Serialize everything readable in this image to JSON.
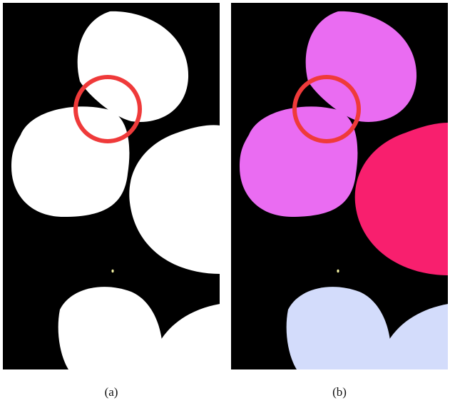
{
  "figure": {
    "panels": [
      {
        "id": "a",
        "caption": "(a)",
        "description_colors": {
          "background": "#000000",
          "blob_top": "#ffffff",
          "blob_left": "#ffffff",
          "blob_right": "#ffffff",
          "blob_bottom_left": "#ffffff",
          "blob_bottom_right": "#ffffff",
          "speck": "#f2f0a0",
          "highlight_ring": "#ef3a3a"
        }
      },
      {
        "id": "b",
        "caption": "(b)",
        "description_colors": {
          "background": "#000000",
          "blob_top": "#ea6cf2",
          "blob_left": "#ea6cf2",
          "blob_right": "#f81f6e",
          "blob_bottom_left": "#d3dcfb",
          "blob_bottom_right": "#d3dcfb",
          "speck": "#f2f0a0",
          "highlight_ring": "#ef3a3a"
        }
      }
    ]
  }
}
